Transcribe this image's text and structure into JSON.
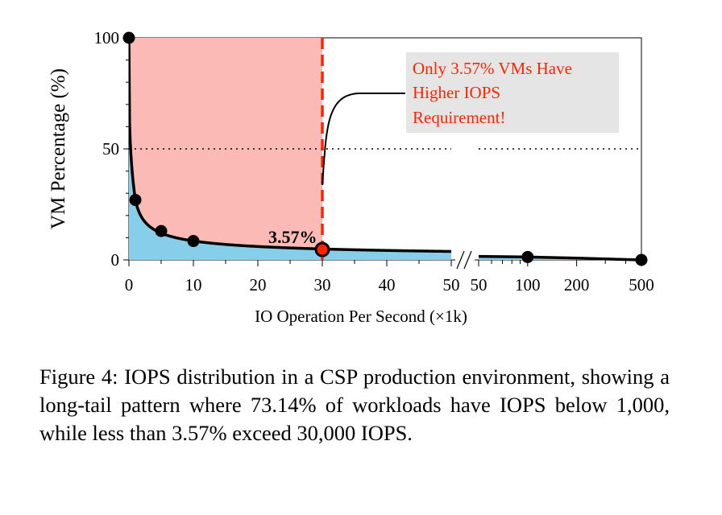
{
  "chart_data": {
    "type": "line",
    "ylabel": "VM Percentage (%)",
    "xlabel": "IO Operation Per Second (×1k)",
    "y_range": [
      0,
      100
    ],
    "y_ticks": [
      "0",
      "50",
      "100"
    ],
    "left_panel": {
      "x_range": [
        0,
        50
      ],
      "x_ticks": [
        "0",
        "10",
        "20",
        "30",
        "40",
        "50"
      ],
      "points": [
        {
          "x": 0,
          "y": 100
        },
        {
          "x": 1,
          "y": 27
        },
        {
          "x": 5,
          "y": 13
        },
        {
          "x": 10,
          "y": 8.5
        },
        {
          "x": 30,
          "y": 3.57
        }
      ]
    },
    "right_panel": {
      "x_ticks": [
        "50",
        "100",
        "200",
        "500"
      ],
      "points": [
        {
          "x": 100,
          "y": 1.3
        },
        {
          "x": 500,
          "y": 0
        }
      ]
    },
    "threshold_x": 30,
    "threshold_label": "3.57%",
    "reference_line_y": 50,
    "callout": "Only 3.57% VMs Have Higher IOPS Requirement!",
    "callout_lines": [
      "Only 3.57% VMs Have",
      "Higher IOPS",
      "Requirement!"
    ],
    "colors": {
      "high_region": "#fcbab6",
      "area": "#87ceeb",
      "threshold": "#ff2400",
      "callout_bg": "#e5e5e5",
      "callout_text": "#ff2400"
    }
  },
  "caption": "Figure 4: IOPS distribution in a CSP production environment, showing a long-tail pattern where 73.14% of workloads have IOPS below 1,000, while less than 3.57% exceed 30,000 IOPS."
}
